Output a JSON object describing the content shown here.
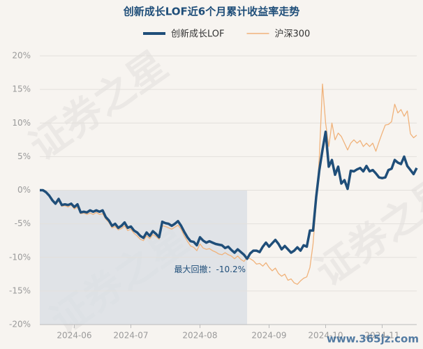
{
  "chart_data": {
    "type": "line",
    "title": "创新成长LOF近6个月累计收益率走势",
    "watermark": "证券之星",
    "site_mark": "www.365jz.com",
    "annotation": "最大回撤：-10.2%",
    "categories": [
      null,
      null,
      null,
      null,
      null,
      null,
      null,
      null,
      null,
      null,
      null,
      "2024-06",
      null,
      null,
      null,
      null,
      null,
      null,
      null,
      null,
      null,
      null,
      null,
      null,
      null,
      null,
      null,
      null,
      null,
      "2024-07",
      null,
      null,
      null,
      null,
      null,
      null,
      null,
      null,
      null,
      null,
      null,
      null,
      null,
      null,
      null,
      null,
      null,
      null,
      null,
      null,
      null,
      "2024-08",
      null,
      null,
      null,
      null,
      null,
      null,
      null,
      null,
      null,
      null,
      null,
      null,
      null,
      null,
      null,
      null,
      null,
      null,
      null,
      null,
      null,
      "2024-09",
      null,
      null,
      null,
      null,
      null,
      null,
      null,
      null,
      null,
      null,
      null,
      null,
      null,
      null,
      null,
      null,
      null,
      "2024-10",
      null,
      null,
      null,
      null,
      null,
      null,
      null,
      null,
      null,
      null,
      null,
      null,
      null,
      null,
      null,
      null,
      null,
      "2024-11",
      null,
      null,
      null,
      null,
      null,
      null,
      null,
      null,
      null,
      null,
      null
    ],
    "series": [
      {
        "name": "创新成长LOF",
        "color": "#1f4e79",
        "values": [
          0,
          0,
          -0.3,
          -0.8,
          -1.5,
          -2,
          -1.3,
          -2.2,
          -2.1,
          -2.2,
          -2.0,
          -2.5,
          -2.1,
          -3.3,
          -3.2,
          -3.3,
          -3.0,
          -3.2,
          -3.0,
          -3.2,
          -3.0,
          -4.0,
          -4.5,
          -5.3,
          -5.0,
          -5.6,
          -5.3,
          -4.8,
          -5.6,
          -5.4,
          -6.0,
          -6.3,
          -6.8,
          -7.1,
          -6.3,
          -6.8,
          -6.1,
          -6.5,
          -7.0,
          -4.7,
          -4.9,
          -5.0,
          -5.3,
          -5.0,
          -4.6,
          -5.3,
          -6.2,
          -7.0,
          -7.6,
          -7.7,
          -8.2,
          -7.0,
          -7.5,
          -7.8,
          -7.6,
          -7.8,
          -8.0,
          -8.1,
          -8.2,
          -8.6,
          -8.4,
          -8.9,
          -9.3,
          -8.8,
          -9.2,
          -9.6,
          -10.2,
          -9.4,
          -9.0,
          -9.0,
          -9.2,
          -8.4,
          -7.8,
          -8.4,
          -7.9,
          -7.4,
          -8.0,
          -8.8,
          -8.3,
          -8.8,
          -9.3,
          -9.0,
          -8.5,
          -9.0,
          -8.2,
          -8.4,
          -6.0,
          -6.0,
          -1.0,
          3.0,
          6.0,
          8.7,
          3.5,
          4.5,
          2.3,
          3.5,
          1.0,
          1.5,
          0.2,
          2.9,
          2.8,
          3.1,
          3.3,
          2.8,
          3.6,
          2.8,
          3.0,
          2.5,
          1.9,
          1.8,
          1.9,
          3.0,
          3.2,
          4.5,
          4.1,
          3.9,
          5.0,
          3.6,
          3.0,
          2.4,
          3.3
        ]
      },
      {
        "name": "沪深300",
        "color": "#f0b27a",
        "values": [
          0,
          0,
          -0.3,
          -0.9,
          -1.6,
          -2.1,
          -1.6,
          -2.4,
          -2.3,
          -2.5,
          -2.2,
          -2.8,
          -2.5,
          -3.5,
          -3.4,
          -3.6,
          -3.4,
          -3.6,
          -3.3,
          -3.6,
          -3.5,
          -4.3,
          -4.8,
          -5.6,
          -5.4,
          -5.9,
          -5.7,
          -5.3,
          -6.0,
          -5.8,
          -6.4,
          -6.8,
          -7.3,
          -7.5,
          -6.8,
          -7.2,
          -6.6,
          -6.9,
          -7.3,
          -5.3,
          -5.4,
          -5.6,
          -5.8,
          -5.5,
          -5.2,
          -5.8,
          -6.8,
          -7.6,
          -8.3,
          -8.5,
          -9.0,
          -8.0,
          -8.6,
          -8.8,
          -8.7,
          -9.0,
          -9.2,
          -9.5,
          -9.6,
          -9.3,
          -9.6,
          -9.8,
          -10.2,
          -9.8,
          -10.3,
          -10.6,
          -10.0,
          -10.2,
          -10.5,
          -11.0,
          -10.9,
          -11.3,
          -10.8,
          -11.5,
          -12.0,
          -11.6,
          -12.4,
          -12.8,
          -12.5,
          -13.4,
          -13.2,
          -13.8,
          -14.0,
          -13.5,
          -13.1,
          -12.9,
          -11.5,
          -8.0,
          -2.0,
          5.0,
          15.8,
          10.0,
          6.5,
          10.0,
          7.5,
          8.5,
          8.0,
          7.0,
          6.0,
          7.0,
          7.5,
          7.0,
          7.4,
          6.5,
          7.0,
          6.5,
          7.0,
          5.8,
          7.2,
          8.5,
          9.7,
          9.8,
          10.2,
          12.8,
          11.5,
          12.0,
          11.0,
          11.8,
          8.4,
          7.8,
          8.2
        ]
      }
    ],
    "ylim": [
      -20,
      20
    ],
    "yticks": [
      {
        "value": -20,
        "label": "-20%"
      },
      {
        "value": -15,
        "label": "-15%"
      },
      {
        "value": -10,
        "label": "-10%"
      },
      {
        "value": -5,
        "label": "-5%"
      },
      {
        "value": 0,
        "label": "0%"
      },
      {
        "value": 5,
        "label": "5%"
      },
      {
        "value": 10,
        "label": "10%"
      },
      {
        "value": 15,
        "label": "15%"
      },
      {
        "value": 20,
        "label": "20%"
      }
    ],
    "grid": true,
    "legend": "top"
  }
}
